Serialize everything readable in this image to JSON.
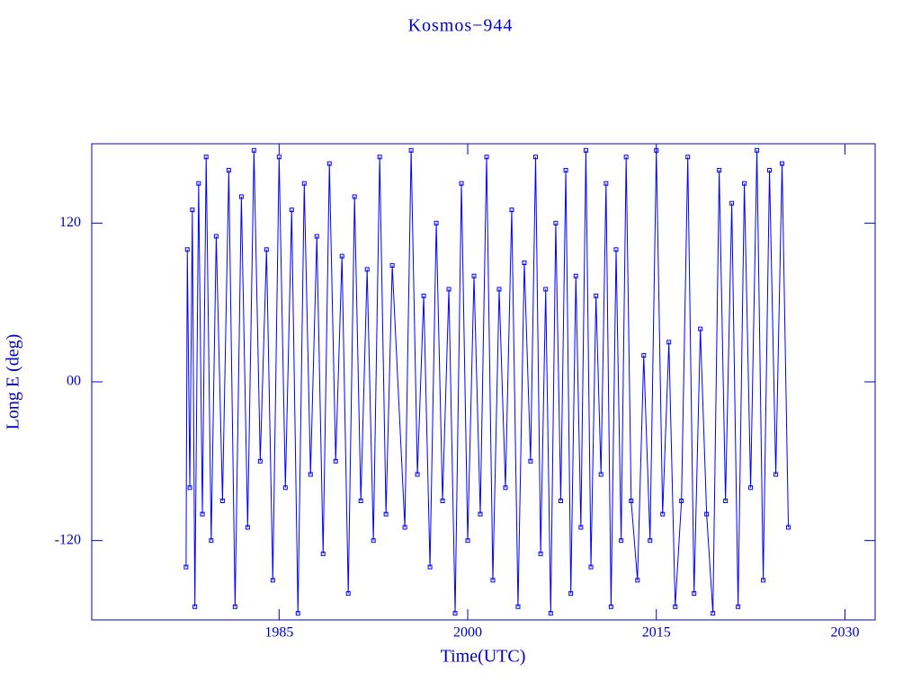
{
  "chart_data": {
    "type": "line",
    "title": "Kosmos−944",
    "x_label": "Time(UTC)",
    "y_label": "Long E (deg)",
    "xlim": [
      1970.1,
      2032.4
    ],
    "xticks": [
      1985,
      2000,
      2015,
      2030
    ],
    "ylim": [
      -180,
      180
    ],
    "yticks": [
      -120,
      {
        "value": 0,
        "label": "00"
      },
      120
    ],
    "color": "#0000ff",
    "series": [
      {
        "x": [
          1977.6,
          1977.7,
          1977.9,
          1978.1,
          1978.3,
          1978.6,
          1978.9,
          1979.2,
          1979.6,
          1980.0,
          1980.5,
          1981.0,
          1981.5,
          1982.0,
          1982.5,
          1983.0,
          1983.5,
          1984.0,
          1984.5,
          1985.0,
          1985.5,
          1986.0,
          1986.5,
          1987.0,
          1987.5,
          1988.0,
          1988.5,
          1989.0,
          1989.5,
          1990.0,
          1990.5,
          1991.0,
          1991.5,
          1992.0,
          1992.5,
          1993.0,
          1993.5,
          1994.0,
          1995.0,
          1995.5,
          1996.0,
          1996.5,
          1997.0,
          1997.5,
          1998.0,
          1998.5,
          1999.0,
          1999.5,
          2000.0,
          2000.5,
          2001.0,
          2001.5,
          2002.0,
          2002.5,
          2003.0,
          2003.5,
          2004.0,
          2004.5,
          2005.0,
          2005.4,
          2005.8,
          2006.2,
          2006.6,
          2007.0,
          2007.4,
          2007.8,
          2008.2,
          2008.6,
          2009.0,
          2009.4,
          2009.8,
          2010.2,
          2010.6,
          2011.0,
          2011.4,
          2011.8,
          2012.2,
          2012.6,
          2013.0,
          2013.5,
          2014.0,
          2014.5,
          2015.0,
          2015.5,
          2016.0,
          2016.5,
          2017.0,
          2017.5,
          2018.0,
          2018.5,
          2019.0,
          2019.5,
          2020.0,
          2020.5,
          2021.0,
          2021.5,
          2022.0,
          2022.5,
          2023.0,
          2023.5,
          2024.0,
          2024.5,
          2025.0,
          2025.5
        ],
        "values": [
          -140,
          100,
          -80,
          130,
          -170,
          150,
          -100,
          170,
          -120,
          110,
          -90,
          160,
          -170,
          140,
          -110,
          175,
          -60,
          100,
          -150,
          170,
          -80,
          130,
          -175,
          150,
          -70,
          110,
          -130,
          165,
          -60,
          95,
          -160,
          140,
          -90,
          85,
          -120,
          170,
          -100,
          88,
          -110,
          175,
          -70,
          65,
          -140,
          120,
          -90,
          70,
          -175,
          150,
          -120,
          80,
          -100,
          170,
          -150,
          70,
          -80,
          130,
          -170,
          90,
          -60,
          170,
          -130,
          70,
          -175,
          120,
          -90,
          160,
          -160,
          80,
          -110,
          175,
          -140,
          65,
          -70,
          150,
          -170,
          100,
          -120,
          170,
          -90,
          -150,
          20,
          -120,
          175,
          -100,
          30,
          -170,
          -90,
          170,
          -160,
          40,
          -100,
          -175,
          160,
          -90,
          135,
          -170,
          150,
          -80,
          175,
          -150,
          160,
          -70,
          165,
          -110
        ]
      }
    ]
  }
}
